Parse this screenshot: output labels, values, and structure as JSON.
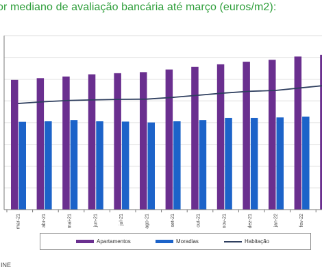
{
  "title": "or mediano de avaliação bancária até março (euros/m2):",
  "source": "INE",
  "colors": {
    "title": "#2e9e3a",
    "apartamentos": "#6a2f8f",
    "moradias": "#1c63c9",
    "habitacao": "#2f3f5f",
    "grid": "#dddddd"
  },
  "chart_data": {
    "type": "bar",
    "categories": [
      "mar-21",
      "abr-21",
      "mai-21",
      "jun-21",
      "jul-21",
      "ago-21",
      "set-21",
      "out-21",
      "nov-21",
      "dez-21",
      "jan-22",
      "fev-22",
      "mar-22"
    ],
    "series": [
      {
        "name": "Apartamentos",
        "type": "bar",
        "values": [
          1490,
          1510,
          1530,
          1555,
          1568,
          1580,
          1610,
          1640,
          1670,
          1700,
          1722,
          1760,
          1780
        ]
      },
      {
        "name": "Moradias",
        "type": "bar",
        "values": [
          1010,
          1015,
          1030,
          1015,
          1012,
          1002,
          1015,
          1030,
          1055,
          1055,
          1060,
          1068,
          null
        ]
      },
      {
        "name": "Habitação",
        "type": "line",
        "values": [
          1220,
          1240,
          1255,
          1262,
          1268,
          1270,
          1290,
          1315,
          1340,
          1360,
          1370,
          1400,
          1430
        ]
      }
    ],
    "ylim": [
      0,
      2000
    ],
    "grid": true,
    "legend_position": "bottom"
  }
}
